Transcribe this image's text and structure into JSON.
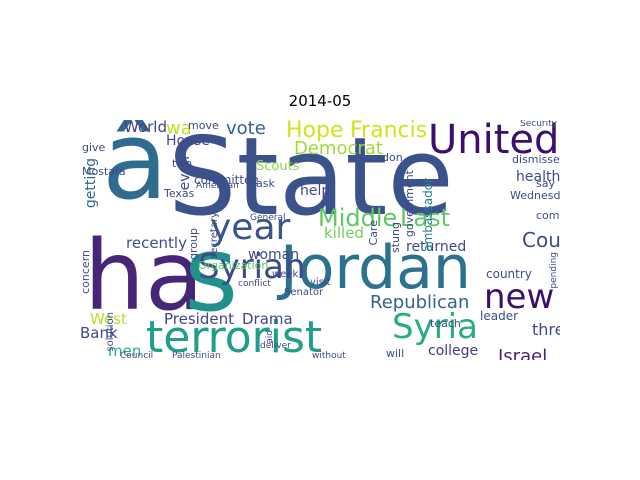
{
  "title": "2014-05",
  "words": [
    {
      "text": "State",
      "color": "#3b528b",
      "rotate": 0
    },
    {
      "text": "â",
      "color": "#2f6c8e",
      "rotate": 0
    },
    {
      "text": "ha",
      "color": "#482677",
      "rotate": 0
    },
    {
      "text": "s",
      "color": "#21918c",
      "rotate": 0
    },
    {
      "text": "Jordan",
      "color": "#2c728e",
      "rotate": 0
    },
    {
      "text": "United",
      "color": "#3b0f70",
      "rotate": 0
    },
    {
      "text": "terrorist",
      "color": "#1f9e89",
      "rotate": 0
    },
    {
      "text": "year",
      "color": "#39568c",
      "rotate": 0
    },
    {
      "text": "Syrian",
      "color": "#3e4a89",
      "rotate": 0
    },
    {
      "text": "Syria",
      "color": "#27ad81",
      "rotate": 0
    },
    {
      "text": "new",
      "color": "#3b0f70",
      "rotate": 0
    },
    {
      "text": "Middle",
      "color": "#5ec962",
      "rotate": 0
    },
    {
      "text": "Last",
      "color": "#5ec962",
      "rotate": 0
    },
    {
      "text": "Hope",
      "color": "#d2e21b",
      "rotate": 0
    },
    {
      "text": "Francis",
      "color": "#d2e21b",
      "rotate": 0
    },
    {
      "text": "vote",
      "color": "#355f8d",
      "rotate": 0
    },
    {
      "text": "Democrat",
      "color": "#a0da39",
      "rotate": 0
    },
    {
      "text": "World",
      "color": "#424086",
      "rotate": 0
    },
    {
      "text": "wa",
      "color": "#c2df23",
      "rotate": 0
    },
    {
      "text": "Republican",
      "color": "#33638d",
      "rotate": 0
    },
    {
      "text": "Court",
      "color": "#3e4a89",
      "rotate": 0
    },
    {
      "text": "President",
      "color": "#404688",
      "rotate": 0
    },
    {
      "text": "Drama",
      "color": "#404688",
      "rotate": 0
    },
    {
      "text": "Israel",
      "color": "#482677",
      "rotate": 0
    },
    {
      "text": "three",
      "color": "#3e4a89",
      "rotate": 0
    },
    {
      "text": "college",
      "color": "#453781",
      "rotate": 0
    },
    {
      "text": "West",
      "color": "#b5de2b",
      "rotate": 0
    },
    {
      "text": "Bank",
      "color": "#3e4a89",
      "rotate": 0
    },
    {
      "text": "men",
      "color": "#29af7f",
      "rotate": 0
    },
    {
      "text": "recently",
      "color": "#3b528b",
      "rotate": 0
    },
    {
      "text": "woman",
      "color": "#3e4a89",
      "rotate": 0
    },
    {
      "text": "killed",
      "color": "#73d056",
      "rotate": 0
    },
    {
      "text": "returned",
      "color": "#3e4989",
      "rotate": 0
    },
    {
      "text": "House",
      "color": "#3e4a89",
      "rotate": 0
    },
    {
      "text": "Scouts",
      "color": "#8fd744",
      "rotate": 0
    },
    {
      "text": "help",
      "color": "#3e4a89",
      "rotate": 0
    },
    {
      "text": "health",
      "color": "#3e4a89",
      "rotate": 0
    },
    {
      "text": "even",
      "color": "#3e4a89",
      "rotate": 0
    },
    {
      "text": "getting",
      "color": "#31688e",
      "rotate": 0
    },
    {
      "text": "ambassador",
      "color": "#277f8e",
      "rotate": 0
    },
    {
      "text": "dismissed",
      "color": "#3e4a89",
      "rotate": 0
    },
    {
      "text": "coming",
      "color": "#3e4a89",
      "rotate": 0
    },
    {
      "text": "Wednesday",
      "color": "#3e4a89",
      "rotate": 0
    },
    {
      "text": "country",
      "color": "#3e4a89",
      "rotate": 0
    },
    {
      "text": "leader",
      "color": "#3e4a89",
      "rotate": 0
    },
    {
      "text": "teach",
      "color": "#3e4a89",
      "rotate": 0
    },
    {
      "text": "will",
      "color": "#3e4a89",
      "rotate": 0
    },
    {
      "text": "committee",
      "color": "#3e4a89",
      "rotate": 0
    },
    {
      "text": "Organization",
      "color": "#5ec962",
      "rotate": 0
    },
    {
      "text": "Mostafa",
      "color": "#3e4a89",
      "rotate": 0
    },
    {
      "text": "ask",
      "color": "#3e4a89",
      "rotate": 0
    },
    {
      "text": "don",
      "color": "#3e4a89",
      "rotate": 0
    },
    {
      "text": "Care",
      "color": "#3e4a89",
      "rotate": 0
    },
    {
      "text": "government",
      "color": "#3e4a89",
      "rotate": 0
    },
    {
      "text": "stung",
      "color": "#3e4a89",
      "rotate": 0
    },
    {
      "text": "group",
      "color": "#3e4a89",
      "rotate": 0
    },
    {
      "text": "concern",
      "color": "#3e4a89",
      "rotate": 0
    },
    {
      "text": "Texas",
      "color": "#3e4a89",
      "rotate": 0
    },
    {
      "text": "two",
      "color": "#3e4a89",
      "rotate": 0
    },
    {
      "text": "week",
      "color": "#3e4a89",
      "rotate": 0
    },
    {
      "text": "visit",
      "color": "#3e4a89",
      "rotate": 0
    },
    {
      "text": "Senator",
      "color": "#3e4a89",
      "rotate": 0
    },
    {
      "text": "say",
      "color": "#3e4a89",
      "rotate": 0
    },
    {
      "text": "move",
      "color": "#3e4a89",
      "rotate": 0
    },
    {
      "text": "give",
      "color": "#3e4a89",
      "rotate": 0
    },
    {
      "text": "secretary",
      "color": "#3e4a89",
      "rotate": 0
    },
    {
      "text": "General",
      "color": "#3e4a89",
      "rotate": 0
    },
    {
      "text": "American",
      "color": "#3e4a89",
      "rotate": 0
    },
    {
      "text": "solution",
      "color": "#3e4a89",
      "rotate": 0
    },
    {
      "text": "aid",
      "color": "#3e4a89",
      "rotate": 0
    },
    {
      "text": "Council",
      "color": "#3e4a89",
      "rotate": 0
    },
    {
      "text": "Palestinian",
      "color": "#3e4a89",
      "rotate": 0
    },
    {
      "text": "deliver",
      "color": "#3e4a89",
      "rotate": 0
    },
    {
      "text": "without",
      "color": "#3e4a89",
      "rotate": 0
    },
    {
      "text": "conflict",
      "color": "#3e4a89",
      "rotate": 0
    },
    {
      "text": "Security",
      "color": "#3e4a89",
      "rotate": 0
    },
    {
      "text": "pending",
      "color": "#3e4a89",
      "rotate": 0
    }
  ]
}
